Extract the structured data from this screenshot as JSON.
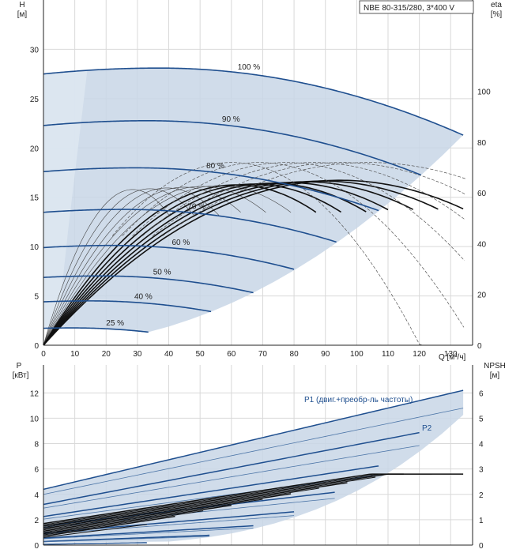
{
  "title_box": "NBE 80-315/280, 3*400 V",
  "chart_data": [
    {
      "type": "line",
      "name_of_panel": "head",
      "ylabel_left": [
        "H",
        "[м]"
      ],
      "ylabel_right": [
        "eta",
        "[%]"
      ],
      "xlabel": "Q [м³/ч]",
      "x_ticks": [
        0,
        10,
        20,
        30,
        40,
        50,
        60,
        70,
        80,
        90,
        100,
        110,
        120,
        130
      ],
      "y_ticks_left": [
        0,
        5,
        10,
        15,
        20,
        25,
        30
      ],
      "y_ticks_right": [
        0,
        20,
        40,
        60,
        80,
        100
      ],
      "xlim": [
        0,
        137
      ],
      "ylim_left": [
        0,
        35
      ],
      "ylim_right": [
        0,
        136
      ],
      "grid": true,
      "speed_curves": [
        {
          "label": "100 %",
          "f": 1.0,
          "label_q": 62
        },
        {
          "label": "90 %",
          "f": 0.9,
          "label_q": 57
        },
        {
          "label": "80 %",
          "f": 0.8,
          "label_q": 52
        },
        {
          "label": "70 %",
          "f": 0.7,
          "label_q": 46
        },
        {
          "label": "60 %",
          "f": 0.6,
          "label_q": 41
        },
        {
          "label": "50 %",
          "f": 0.5,
          "label_q": 35
        },
        {
          "label": "40 %",
          "f": 0.4,
          "label_q": 29
        },
        {
          "label": "25 %",
          "f": 0.25,
          "label_q": 20
        }
      ],
      "base_head_curve": {
        "h0": 27.5,
        "peak_q": 37,
        "peak_h": 28.1,
        "q_max": 134,
        "h_end": 21.3
      },
      "operating_area_left_q": 10
    },
    {
      "type": "line",
      "name_of_panel": "power",
      "ylabel_left": [
        "P",
        "[кВт]"
      ],
      "ylabel_right": [
        "NPSH",
        "[м]"
      ],
      "y_ticks_left": [
        0,
        2,
        4,
        6,
        8,
        10,
        12
      ],
      "y_ticks_right": [
        0,
        1,
        2,
        3,
        4,
        5,
        6
      ],
      "ylim_left": [
        0,
        14.2
      ],
      "ylim_right": [
        0,
        7.1
      ],
      "grid": true,
      "p1_label": "P1 (двиг.+преобр-ль частоты)",
      "p2_label": "P2",
      "p1_base": {
        "p0": 4.4,
        "p_end": 12.2
      },
      "p2_base": {
        "p0": 4.0,
        "p_end": 10.8
      },
      "npsh_base": {
        "n0": 0.3,
        "n_end": 2.8
      }
    }
  ]
}
